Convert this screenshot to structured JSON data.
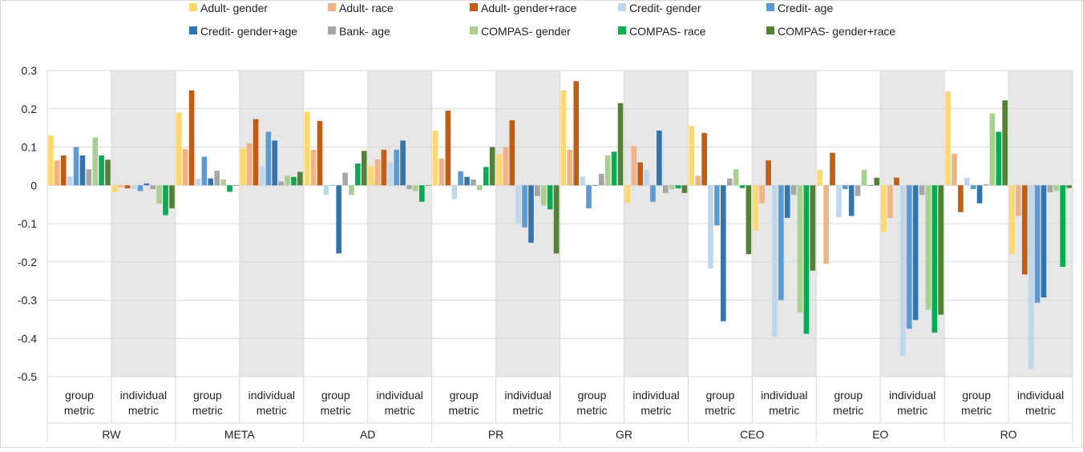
{
  "chart_data": {
    "type": "bar",
    "ylim": [
      -0.5,
      0.3
    ],
    "yticks": [
      "0.3",
      "0.2",
      "0.1",
      "0",
      "-0.1",
      "-0.2",
      "-0.3",
      "-0.4",
      "-0.5"
    ],
    "ytick_values": [
      0.3,
      0.2,
      0.1,
      0,
      -0.1,
      -0.2,
      -0.3,
      -0.4,
      -0.5
    ],
    "grid": true,
    "legend_position": "top",
    "categories": [
      {
        "group": "RW",
        "metric": "group metric",
        "metric_lines": [
          "group",
          "metric"
        ]
      },
      {
        "group": "RW",
        "metric": "individual metric",
        "metric_lines": [
          "individual",
          "metric"
        ]
      },
      {
        "group": "META",
        "metric": "group metric",
        "metric_lines": [
          "group",
          "metric"
        ]
      },
      {
        "group": "META",
        "metric": "individual metric",
        "metric_lines": [
          "individual",
          "metric"
        ]
      },
      {
        "group": "AD",
        "metric": "group metric",
        "metric_lines": [
          "group",
          "metric"
        ]
      },
      {
        "group": "AD",
        "metric": "individual metric",
        "metric_lines": [
          "individual",
          "metric"
        ]
      },
      {
        "group": "PR",
        "metric": "group metric",
        "metric_lines": [
          "group",
          "metric"
        ]
      },
      {
        "group": "PR",
        "metric": "individual metric",
        "metric_lines": [
          "individual",
          "metric"
        ]
      },
      {
        "group": "GR",
        "metric": "group metric",
        "metric_lines": [
          "group",
          "metric"
        ]
      },
      {
        "group": "GR",
        "metric": "individual metric",
        "metric_lines": [
          "individual",
          "metric"
        ]
      },
      {
        "group": "CEO",
        "metric": "group metric",
        "metric_lines": [
          "group",
          "metric"
        ]
      },
      {
        "group": "CEO",
        "metric": "individual metric",
        "metric_lines": [
          "individual",
          "metric"
        ]
      },
      {
        "group": "EO",
        "metric": "group metric",
        "metric_lines": [
          "group",
          "metric"
        ]
      },
      {
        "group": "EO",
        "metric": "individual metric",
        "metric_lines": [
          "individual",
          "metric"
        ]
      },
      {
        "group": "RO",
        "metric": "group metric",
        "metric_lines": [
          "group",
          "metric"
        ]
      },
      {
        "group": "RO",
        "metric": "individual metric",
        "metric_lines": [
          "individual",
          "metric"
        ]
      }
    ],
    "groups": [
      "RW",
      "META",
      "AD",
      "PR",
      "GR",
      "CEO",
      "EO",
      "RO"
    ],
    "shaded_categories": [
      1,
      3,
      5,
      7,
      9,
      11,
      13,
      15
    ],
    "shade_color": "#e7e7e7",
    "series": [
      {
        "name": "Adult- gender",
        "color": "#ffd966",
        "values": [
          0.13,
          -0.018,
          0.19,
          0.097,
          0.193,
          0.05,
          0.143,
          0.082,
          0.248,
          -0.047,
          0.155,
          -0.118,
          0.04,
          -0.122,
          0.245,
          -0.18
        ]
      },
      {
        "name": "Adult- race",
        "color": "#f4b183",
        "values": [
          0.065,
          -0.005,
          0.095,
          0.11,
          0.093,
          0.068,
          0.07,
          0.1,
          0.093,
          0.103,
          0.025,
          -0.047,
          -0.205,
          -0.085,
          0.083,
          -0.08
        ]
      },
      {
        "name": "Adult- gender+race",
        "color": "#c55a11",
        "values": [
          0.078,
          -0.008,
          0.248,
          0.173,
          0.168,
          0.093,
          0.195,
          0.17,
          0.272,
          0.06,
          0.137,
          0.065,
          0.085,
          0.02,
          -0.07,
          -0.233
        ]
      },
      {
        "name": "Credit- gender",
        "color": "#bdd7ee",
        "values": [
          0.023,
          -0.01,
          0.018,
          0.05,
          -0.025,
          0.06,
          -0.036,
          -0.1,
          0.023,
          0.04,
          -0.217,
          -0.395,
          -0.083,
          -0.445,
          0.02,
          -0.48
        ]
      },
      {
        "name": "Credit- age",
        "color": "#5b9bd5",
        "values": [
          0.1,
          -0.015,
          0.075,
          0.14,
          0.0,
          0.093,
          0.037,
          -0.11,
          -0.06,
          -0.043,
          -0.105,
          -0.3,
          -0.01,
          -0.375,
          -0.01,
          -0.307
        ]
      },
      {
        "name": "Credit- gender+age",
        "color": "#2e75b6",
        "values": [
          0.078,
          0.005,
          0.018,
          0.117,
          -0.178,
          0.117,
          0.022,
          -0.15,
          0.0,
          0.143,
          -0.355,
          -0.085,
          -0.08,
          -0.352,
          -0.047,
          -0.293
        ]
      },
      {
        "name": "Bank- age",
        "color": "#a6a6a6",
        "values": [
          0.042,
          -0.01,
          0.038,
          0.01,
          0.033,
          -0.01,
          0.015,
          -0.028,
          0.03,
          -0.02,
          0.018,
          -0.025,
          -0.028,
          -0.025,
          0.003,
          -0.018
        ]
      },
      {
        "name": "COMPAS- gender",
        "color": "#a9d18e",
        "values": [
          0.125,
          -0.048,
          0.015,
          0.025,
          -0.025,
          -0.015,
          -0.013,
          -0.053,
          0.078,
          -0.01,
          0.042,
          -0.332,
          0.04,
          -0.325,
          0.188,
          -0.015
        ]
      },
      {
        "name": "COMPAS- race",
        "color": "#00b050",
        "values": [
          0.078,
          -0.078,
          -0.017,
          0.022,
          0.057,
          -0.043,
          0.048,
          -0.063,
          0.088,
          -0.008,
          -0.007,
          -0.388,
          0.0,
          -0.385,
          0.14,
          -0.213
        ]
      },
      {
        "name": "COMPAS- gender+race",
        "color": "#548235",
        "values": [
          0.067,
          -0.06,
          0.0,
          0.035,
          0.09,
          0.0,
          0.1,
          -0.178,
          0.215,
          -0.02,
          -0.18,
          -0.223,
          0.02,
          -0.338,
          0.222,
          -0.007
        ]
      }
    ]
  }
}
